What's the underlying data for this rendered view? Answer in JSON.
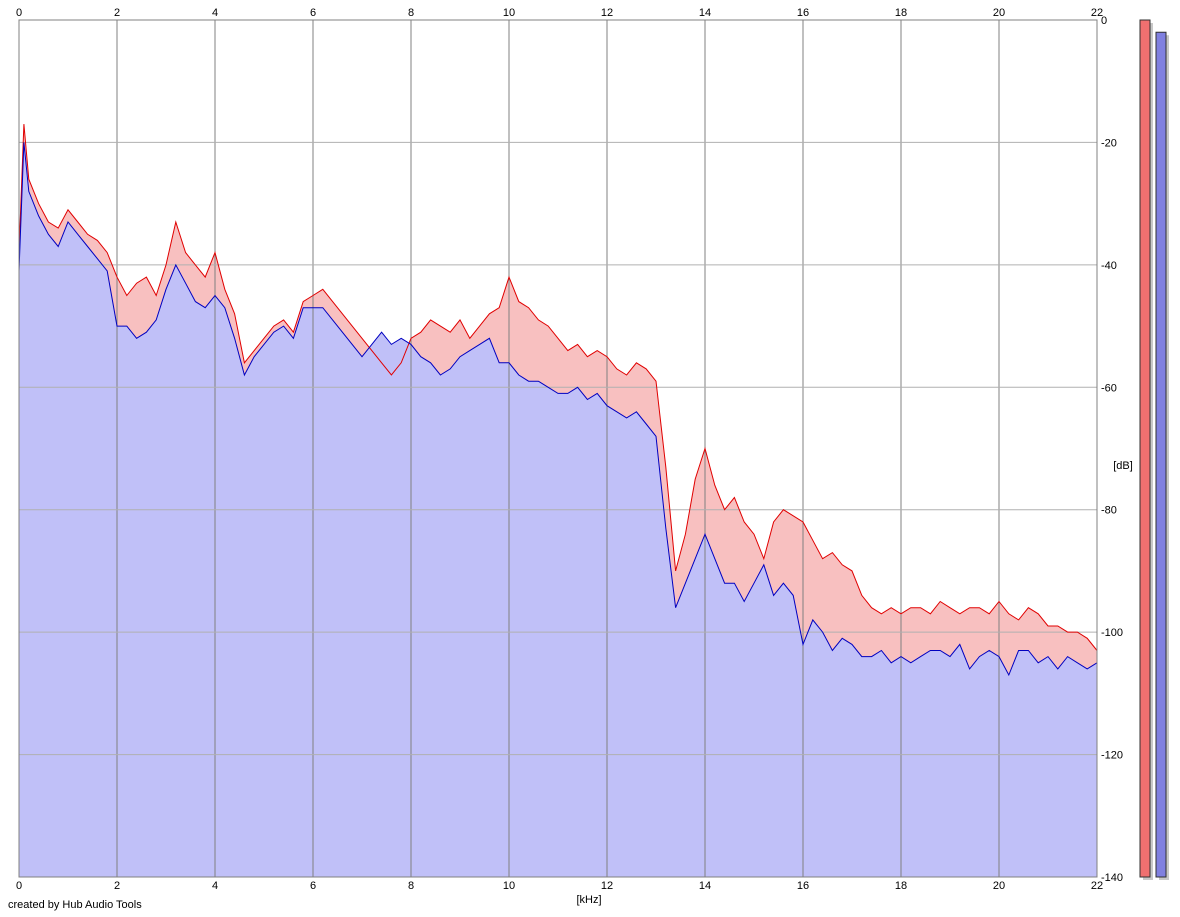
{
  "chart_data": {
    "type": "area",
    "xlabel": "[kHz]",
    "ylabel": "[dB]",
    "xlim": [
      0,
      22
    ],
    "ylim": [
      -140,
      0
    ],
    "x_ticks": [
      "0",
      "2",
      "4",
      "6",
      "8",
      "10",
      "12",
      "14",
      "16",
      "18",
      "20",
      "22"
    ],
    "y_ticks": [
      "0",
      "-20",
      "-40",
      "-60",
      "-80",
      "-100",
      "-120",
      "-140"
    ],
    "grid": true,
    "series": [
      {
        "color": "#e00000",
        "fill": "#f8c0c0",
        "x": [
          0,
          0.1,
          0.2,
          0.4,
          0.6,
          0.8,
          1.0,
          1.2,
          1.4,
          1.6,
          1.8,
          2.0,
          2.2,
          2.4,
          2.6,
          2.8,
          3.0,
          3.2,
          3.4,
          3.6,
          3.8,
          4.0,
          4.2,
          4.4,
          4.6,
          4.8,
          5.0,
          5.2,
          5.4,
          5.6,
          5.8,
          6.0,
          6.2,
          6.4,
          6.6,
          6.8,
          7.0,
          7.2,
          7.4,
          7.6,
          7.8,
          8.0,
          8.2,
          8.4,
          8.6,
          8.8,
          9.0,
          9.2,
          9.4,
          9.6,
          9.8,
          10.0,
          10.2,
          10.4,
          10.6,
          10.8,
          11.0,
          11.2,
          11.4,
          11.6,
          11.8,
          12.0,
          12.2,
          12.4,
          12.6,
          12.8,
          13.0,
          13.2,
          13.4,
          13.6,
          13.8,
          14.0,
          14.2,
          14.4,
          14.6,
          14.8,
          15.0,
          15.2,
          15.4,
          15.6,
          15.8,
          16.0,
          16.2,
          16.4,
          16.6,
          16.8,
          17.0,
          17.2,
          17.4,
          17.6,
          17.8,
          18.0,
          18.2,
          18.4,
          18.6,
          18.8,
          19.0,
          19.2,
          19.4,
          19.6,
          19.8,
          20.0,
          20.2,
          20.4,
          20.6,
          20.8,
          21.0,
          21.2,
          21.4,
          21.6,
          21.8,
          22.0
        ],
        "y": [
          -38,
          -17,
          -26,
          -30,
          -33,
          -34,
          -31,
          -33,
          -35,
          -36,
          -38,
          -42,
          -45,
          -43,
          -42,
          -45,
          -40,
          -33,
          -38,
          -40,
          -42,
          -38,
          -44,
          -48,
          -56,
          -54,
          -52,
          -50,
          -49,
          -51,
          -46,
          -45,
          -44,
          -46,
          -48,
          -50,
          -52,
          -54,
          -56,
          -58,
          -56,
          -52,
          -51,
          -49,
          -50,
          -51,
          -49,
          -52,
          -50,
          -48,
          -47,
          -42,
          -46,
          -47,
          -49,
          -50,
          -52,
          -54,
          -53,
          -55,
          -54,
          -55,
          -57,
          -58,
          -56,
          -57,
          -59,
          -73,
          -90,
          -84,
          -75,
          -70,
          -76,
          -80,
          -78,
          -82,
          -84,
          -88,
          -82,
          -80,
          -81,
          -82,
          -85,
          -88,
          -87,
          -89,
          -90,
          -94,
          -96,
          -97,
          -96,
          -97,
          -96,
          -96,
          -97,
          -95,
          -96,
          -97,
          -96,
          -96,
          -97,
          -95,
          -97,
          -98,
          -96,
          -97,
          -99,
          -99,
          -100,
          -100,
          -101,
          -103
        ]
      },
      {
        "color": "#0000c0",
        "fill": "#c0c0f8",
        "x": [
          0,
          0.1,
          0.2,
          0.4,
          0.6,
          0.8,
          1.0,
          1.2,
          1.4,
          1.6,
          1.8,
          2.0,
          2.2,
          2.4,
          2.6,
          2.8,
          3.0,
          3.2,
          3.4,
          3.6,
          3.8,
          4.0,
          4.2,
          4.4,
          4.6,
          4.8,
          5.0,
          5.2,
          5.4,
          5.6,
          5.8,
          6.0,
          6.2,
          6.4,
          6.6,
          6.8,
          7.0,
          7.2,
          7.4,
          7.6,
          7.8,
          8.0,
          8.2,
          8.4,
          8.6,
          8.8,
          9.0,
          9.2,
          9.4,
          9.6,
          9.8,
          10.0,
          10.2,
          10.4,
          10.6,
          10.8,
          11.0,
          11.2,
          11.4,
          11.6,
          11.8,
          12.0,
          12.2,
          12.4,
          12.6,
          12.8,
          13.0,
          13.2,
          13.4,
          13.6,
          13.8,
          14.0,
          14.2,
          14.4,
          14.6,
          14.8,
          15.0,
          15.2,
          15.4,
          15.6,
          15.8,
          16.0,
          16.2,
          16.4,
          16.6,
          16.8,
          17.0,
          17.2,
          17.4,
          17.6,
          17.8,
          18.0,
          18.2,
          18.4,
          18.6,
          18.8,
          19.0,
          19.2,
          19.4,
          19.6,
          19.8,
          20.0,
          20.2,
          20.4,
          20.6,
          20.8,
          21.0,
          21.2,
          21.4,
          21.6,
          21.8,
          22.0
        ],
        "y": [
          -41,
          -20,
          -28,
          -32,
          -35,
          -37,
          -33,
          -35,
          -37,
          -39,
          -41,
          -50,
          -50,
          -52,
          -51,
          -49,
          -44,
          -40,
          -43,
          -46,
          -47,
          -45,
          -47,
          -52,
          -58,
          -55,
          -53,
          -51,
          -50,
          -52,
          -47,
          -47,
          -47,
          -49,
          -51,
          -53,
          -55,
          -53,
          -51,
          -53,
          -52,
          -53,
          -55,
          -56,
          -58,
          -57,
          -55,
          -54,
          -53,
          -52,
          -56,
          -56,
          -58,
          -59,
          -59,
          -60,
          -61,
          -61,
          -60,
          -62,
          -61,
          -63,
          -64,
          -65,
          -64,
          -66,
          -68,
          -83,
          -96,
          -92,
          -88,
          -84,
          -88,
          -92,
          -92,
          -95,
          -92,
          -89,
          -94,
          -92,
          -94,
          -102,
          -98,
          -100,
          -103,
          -101,
          -102,
          -104,
          -104,
          -103,
          -105,
          -104,
          -105,
          -104,
          -103,
          -103,
          -104,
          -102,
          -106,
          -104,
          -103,
          -104,
          -107,
          -103,
          -103,
          -105,
          -104,
          -106,
          -104,
          -105,
          -106,
          -105
        ]
      }
    ],
    "level_meters": [
      {
        "color": "#f07070",
        "level_db": 0
      },
      {
        "color": "#8080e0",
        "level_db": -2
      }
    ]
  },
  "footer": {
    "credit": "created by Hub Audio Tools"
  }
}
